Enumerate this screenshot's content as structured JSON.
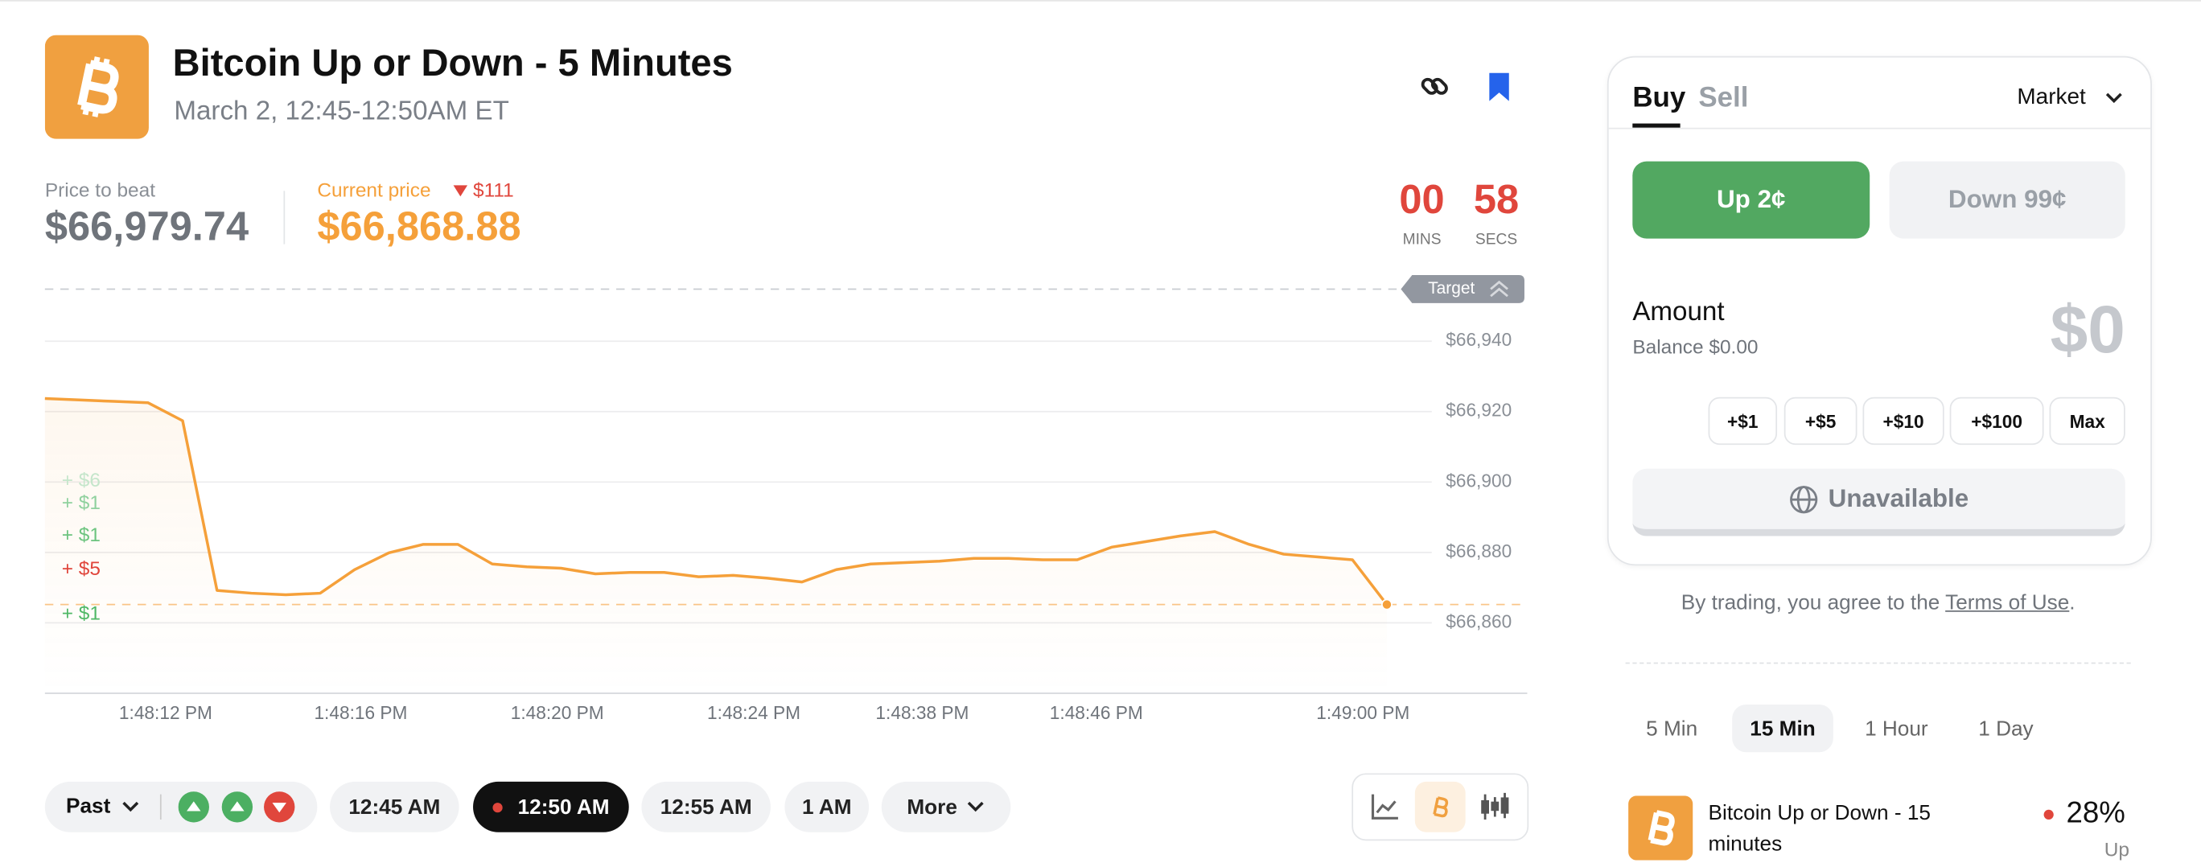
{
  "header": {
    "title": "Bitcoin Up or Down - 5 Minutes",
    "subtitle": "March 2, 12:45-12:50AM ET"
  },
  "price_to_beat": {
    "label": "Price to beat",
    "value": "$66,979.74"
  },
  "current_price": {
    "label": "Current price",
    "change": "$111",
    "value": "$66,868.88"
  },
  "countdown": {
    "mins": "00",
    "mins_label": "MINS",
    "secs": "58",
    "secs_label": "SECS"
  },
  "chart_data": {
    "type": "line",
    "target_label": "Target",
    "color": "#f5a03a",
    "grid": true,
    "ylim": [
      66840,
      66952
    ],
    "yticks": [
      {
        "value": 66940,
        "label": "$66,940"
      },
      {
        "value": 66920,
        "label": "$66,920"
      },
      {
        "value": 66900,
        "label": "$66,900"
      },
      {
        "value": 66880,
        "label": "$66,880"
      },
      {
        "value": 66860,
        "label": "$66,860"
      }
    ],
    "x_labels": [
      "1:48:12 PM",
      "1:48:16 PM",
      "1:48:20 PM",
      "1:48:24 PM",
      "1:48:38 PM",
      "1:48:46 PM",
      "1:49:00 PM"
    ],
    "values": [
      66923.7,
      66923.3,
      66922.9,
      66922.5,
      66917.4,
      66869.2,
      66868.4,
      66868.0,
      66868.4,
      66875.1,
      66879.9,
      66882.3,
      66882.3,
      66876.7,
      66875.9,
      66875.5,
      66873.9,
      66874.3,
      66874.3,
      66873.1,
      66873.5,
      66872.7,
      66871.6,
      66875.1,
      66876.7,
      66877.1,
      66877.5,
      66878.3,
      66878.3,
      66877.9,
      66877.9,
      66881.5,
      66883.1,
      66884.7,
      66885.9,
      66882.3,
      66879.5,
      66878.7,
      66877.9,
      66865.2
    ],
    "trades": [
      {
        "label": "+ $6",
        "color": "#c5e6cb"
      },
      {
        "label": "+ $1",
        "color": "#8fd19e"
      },
      {
        "label": "+ $1",
        "color": "#6cc47f"
      },
      {
        "label": "+ $5",
        "color": "#e0463c"
      },
      {
        "label": "+ $1",
        "color": "#4fb866"
      }
    ]
  },
  "bottom_bar": {
    "past": "Past",
    "times": [
      "12:45 AM",
      "12:50 AM",
      "12:55 AM",
      "1 AM"
    ],
    "more": "More"
  },
  "order": {
    "buy": "Buy",
    "sell": "Sell",
    "order_type": "Market",
    "up": "Up 2¢",
    "down": "Down 99¢",
    "amount": "Amount",
    "balance": "Balance $0.00",
    "amount_value": "$0",
    "quick": [
      "+$1",
      "+$5",
      "+$10",
      "+$100",
      "Max"
    ],
    "unavailable": "Unavailable"
  },
  "terms": {
    "prefix": "By trading, you agree to the ",
    "link": "Terms of Use",
    "suffix": "."
  },
  "timeframes": [
    "5 Min",
    "15 Min",
    "1 Hour",
    "1 Day"
  ],
  "related": {
    "title": "Bitcoin Up or Down - 15 minutes",
    "percent": "28%",
    "outcome": "Up"
  }
}
